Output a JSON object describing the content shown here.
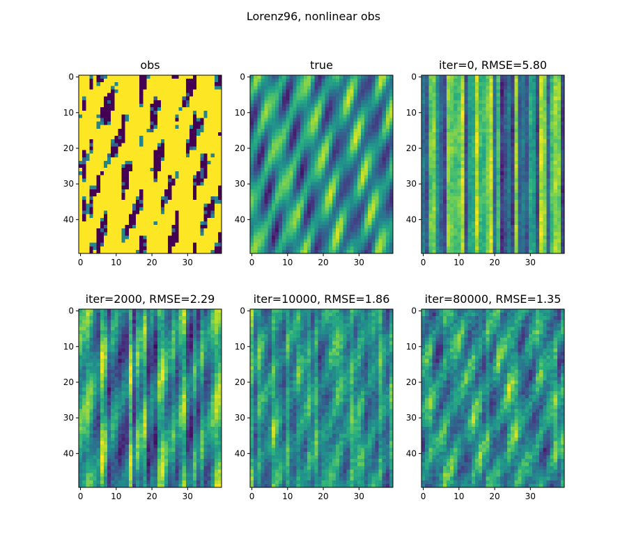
{
  "figure": {
    "suptitle": "Lorenz96, nonlinear obs"
  },
  "chart_data": [
    {
      "type": "heatmap",
      "title": "obs",
      "rows": 50,
      "cols": 40,
      "colormap": "viridis",
      "xticks": [
        0,
        10,
        20,
        30
      ],
      "yticks": [
        0,
        10,
        20,
        30,
        40
      ],
      "xlim": [
        0,
        39
      ],
      "ylim": [
        49,
        0
      ],
      "pattern": "binary"
    },
    {
      "type": "heatmap",
      "title": "true",
      "rows": 50,
      "cols": 40,
      "colormap": "viridis",
      "xticks": [
        0,
        10,
        20,
        30
      ],
      "yticks": [
        0,
        10,
        20,
        30,
        40
      ],
      "xlim": [
        0,
        39
      ],
      "ylim": [
        49,
        0
      ],
      "pattern": "waves"
    },
    {
      "type": "heatmap",
      "title": "iter=0, RMSE=5.80",
      "iter": 0,
      "rmse": 5.8,
      "rows": 50,
      "cols": 40,
      "colormap": "viridis",
      "xticks": [
        0,
        10,
        20,
        30
      ],
      "yticks": [
        0,
        10,
        20,
        30,
        40
      ],
      "xlim": [
        0,
        39
      ],
      "ylim": [
        49,
        0
      ],
      "pattern": "columns"
    },
    {
      "type": "heatmap",
      "title": "iter=2000, RMSE=2.29",
      "iter": 2000,
      "rmse": 2.29,
      "rows": 50,
      "cols": 40,
      "colormap": "viridis",
      "xticks": [
        0,
        10,
        20,
        30
      ],
      "yticks": [
        0,
        10,
        20,
        30,
        40
      ],
      "xlim": [
        0,
        39
      ],
      "ylim": [
        49,
        0
      ],
      "pattern": "stripes"
    },
    {
      "type": "heatmap",
      "title": "iter=10000, RMSE=1.86",
      "iter": 10000,
      "rmse": 1.86,
      "rows": 50,
      "cols": 40,
      "colormap": "viridis",
      "xticks": [
        0,
        10,
        20,
        30
      ],
      "yticks": [
        0,
        10,
        20,
        30,
        40
      ],
      "xlim": [
        0,
        39
      ],
      "ylim": [
        49,
        0
      ],
      "pattern": "stripes-waves"
    },
    {
      "type": "heatmap",
      "title": "iter=80000, RMSE=1.35",
      "iter": 80000,
      "rmse": 1.35,
      "rows": 50,
      "cols": 40,
      "colormap": "viridis",
      "xticks": [
        0,
        10,
        20,
        30
      ],
      "yticks": [
        0,
        10,
        20,
        30,
        40
      ],
      "xlim": [
        0,
        39
      ],
      "ylim": [
        49,
        0
      ],
      "pattern": "waves-noisy"
    }
  ]
}
